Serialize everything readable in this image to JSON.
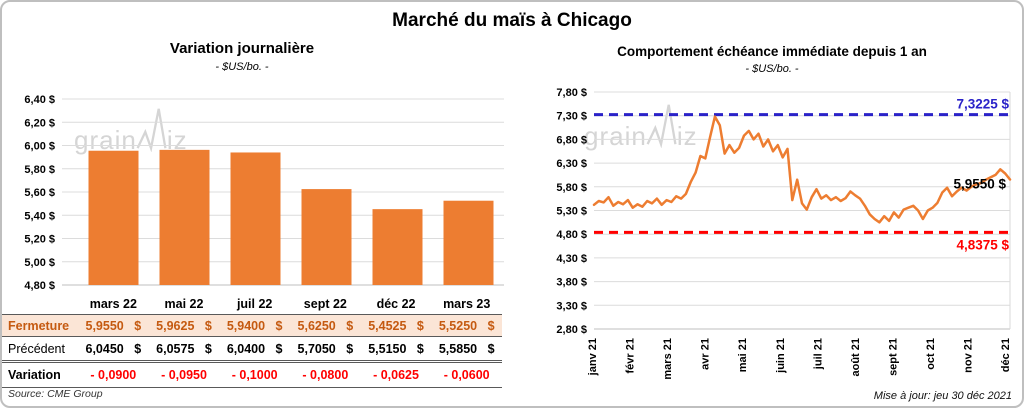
{
  "page": {
    "title": "Marché du maïs à Chicago",
    "updated": "Mise à jour: jeu 30 déc 2021",
    "watermark": {
      "left": "grain",
      "right": "iz"
    }
  },
  "table": {
    "columns": [
      "mars 22",
      "mai 22",
      "juil 22",
      "sept 22",
      "déc 22",
      "mars 23"
    ],
    "rows": [
      {
        "label": "Fermeture",
        "style": "highlight",
        "values": [
          "5,9550 $",
          "5,9625 $",
          "5,9400 $",
          "5,6250 $",
          "5,4525 $",
          "5,5250 $"
        ]
      },
      {
        "label": "Précédent",
        "style": "normal",
        "values": [
          "6,0450 $",
          "6,0575 $",
          "6,0400 $",
          "5,7050 $",
          "5,5150 $",
          "5,5850 $"
        ]
      },
      {
        "label": "Variation",
        "style": "negative",
        "values": [
          "- 0,0900",
          "- 0,0950",
          "- 0,1000",
          "- 0,0800",
          "- 0,0625",
          "- 0,0600"
        ]
      }
    ],
    "highlight_bg": "#FBE5D6",
    "highlight_text": "#C55A11",
    "negative_color": "#FF0000",
    "source": "Source: CME Group"
  },
  "chart_data": [
    {
      "type": "bar",
      "title": "Variation  journalière",
      "subtitle": "- $US/bo. -",
      "categories": [
        "mars 22",
        "mai 22",
        "juil 22",
        "sept 22",
        "déc 22",
        "mars 23"
      ],
      "values": [
        5.955,
        5.9625,
        5.94,
        5.625,
        5.4525,
        5.525
      ],
      "ylim": [
        4.8,
        6.4
      ],
      "ytick_step": 0.2,
      "ytick_suffix": " $",
      "bar_color": "#ED7D31",
      "grid": true,
      "legend": "none"
    },
    {
      "type": "line",
      "title": "Comportement  échéance  immédiate  depuis 1 an",
      "subtitle": "- $US/bo. -",
      "x_labels": [
        "janv 21",
        "févr 21",
        "mars 21",
        "avr 21",
        "mai 21",
        "juin 21",
        "juil 21",
        "août 21",
        "sept 21",
        "oct 21",
        "nov 21",
        "déc 21"
      ],
      "values": [
        5.42,
        5.5,
        5.47,
        5.58,
        5.4,
        5.48,
        5.43,
        5.52,
        5.36,
        5.43,
        5.38,
        5.5,
        5.45,
        5.55,
        5.42,
        5.52,
        5.48,
        5.6,
        5.55,
        5.65,
        5.9,
        6.1,
        6.45,
        6.4,
        6.85,
        7.28,
        7.1,
        6.5,
        6.68,
        6.52,
        6.62,
        6.88,
        6.98,
        6.8,
        6.92,
        6.65,
        6.8,
        6.55,
        6.68,
        6.42,
        6.6,
        5.52,
        5.95,
        5.45,
        5.32,
        5.58,
        5.75,
        5.55,
        5.62,
        5.52,
        5.58,
        5.5,
        5.56,
        5.7,
        5.62,
        5.55,
        5.4,
        5.22,
        5.12,
        5.05,
        5.18,
        5.08,
        5.26,
        5.15,
        5.32,
        5.36,
        5.4,
        5.3,
        5.12,
        5.3,
        5.36,
        5.46,
        5.68,
        5.78,
        5.6,
        5.7,
        5.78,
        5.72,
        5.8,
        5.85,
        5.88,
        5.95,
        6.0,
        6.05,
        6.17,
        6.08,
        5.955
      ],
      "ylim": [
        2.8,
        7.8
      ],
      "ytick_step": 0.5,
      "ytick_suffix": " $",
      "line_color": "#ED7D31",
      "grid": true,
      "high_line": {
        "value": 7.3225,
        "label": "7,3225 $",
        "color": "#2A22C8"
      },
      "low_line": {
        "value": 4.8375,
        "label": "4,8375 $",
        "color": "#FF0000"
      },
      "last_label": {
        "value": 5.955,
        "label": "5,9550 $",
        "color": "#000000"
      }
    }
  ]
}
